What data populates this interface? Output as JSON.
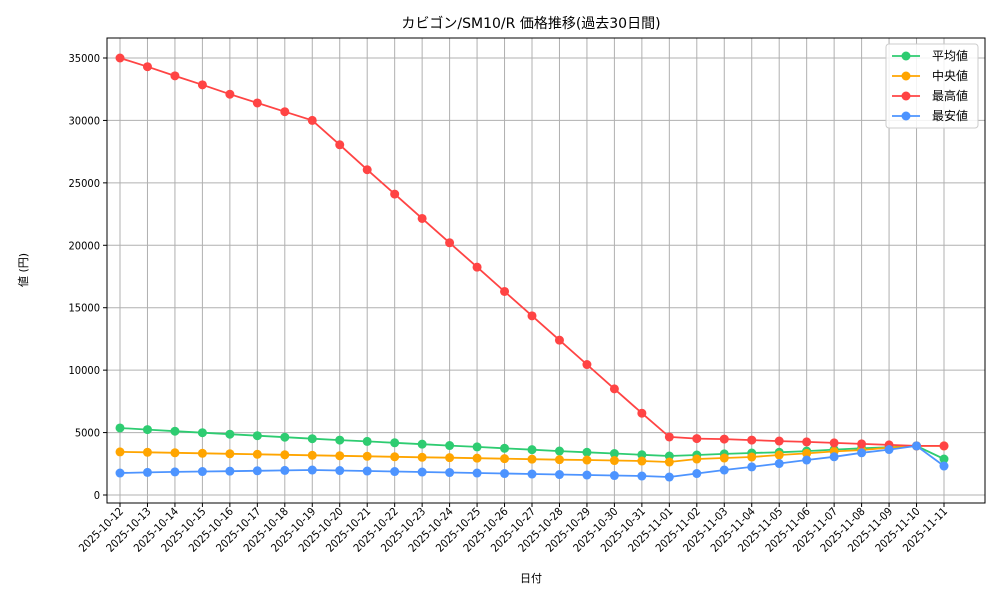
{
  "chart_data": {
    "type": "line",
    "title": "カビゴン/SM10/R 価格推移(過去30日間)",
    "xlabel": "日付",
    "ylabel": "値 (円)",
    "ylim": [
      -300,
      36600
    ],
    "yticks": [
      0,
      5000,
      10000,
      15000,
      20000,
      25000,
      30000,
      35000
    ],
    "grid": true,
    "legend_position": "upper right",
    "categories": [
      "2025-10-12",
      "2025-10-13",
      "2025-10-14",
      "2025-10-15",
      "2025-10-16",
      "2025-10-17",
      "2025-10-18",
      "2025-10-19",
      "2025-10-20",
      "2025-10-21",
      "2025-10-22",
      "2025-10-23",
      "2025-10-24",
      "2025-10-25",
      "2025-10-26",
      "2025-10-27",
      "2025-10-28",
      "2025-10-29",
      "2025-10-30",
      "2025-10-31",
      "2025-11-01",
      "2025-11-02",
      "2025-11-03",
      "2025-11-04",
      "2025-11-05",
      "2025-11-06",
      "2025-11-07",
      "2025-11-08",
      "2025-11-09",
      "2025-11-10",
      "2025-11-11"
    ],
    "series": [
      {
        "name": "平均値",
        "color": "#2ecc71",
        "values": [
          5370,
          5240,
          5110,
          4990,
          4870,
          4750,
          4630,
          4510,
          4400,
          4290,
          4180,
          4070,
          3960,
          3850,
          3740,
          3630,
          3520,
          3420,
          3320,
          3220,
          3120,
          3200,
          3290,
          3360,
          3420,
          3520,
          3640,
          3740,
          3820,
          3930,
          2880
        ]
      },
      {
        "name": "中央値",
        "color": "#ffa500",
        "values": [
          3450,
          3420,
          3380,
          3340,
          3300,
          3260,
          3220,
          3180,
          3140,
          3100,
          3060,
          3020,
          2990,
          2950,
          2910,
          2870,
          2830,
          2800,
          2760,
          2720,
          2640,
          2880,
          2960,
          3040,
          3200,
          3330,
          3490,
          3600,
          3800,
          3930,
          3930
        ]
      },
      {
        "name": "最高値",
        "color": "#ff4444",
        "values": [
          35000,
          34300,
          33570,
          32850,
          32100,
          31400,
          30700,
          30000,
          28050,
          26050,
          24100,
          22150,
          20200,
          18250,
          16300,
          14350,
          12400,
          10450,
          8500,
          6550,
          4650,
          4520,
          4480,
          4400,
          4320,
          4250,
          4170,
          4090,
          4010,
          3930,
          3930
        ]
      },
      {
        "name": "最安値",
        "color": "#4d94ff",
        "values": [
          1760,
          1810,
          1850,
          1880,
          1910,
          1940,
          1970,
          2000,
          1960,
          1920,
          1880,
          1840,
          1800,
          1760,
          1720,
          1680,
          1640,
          1600,
          1560,
          1520,
          1440,
          1720,
          2000,
          2250,
          2520,
          2800,
          3060,
          3380,
          3640,
          3930,
          2320
        ]
      }
    ]
  }
}
